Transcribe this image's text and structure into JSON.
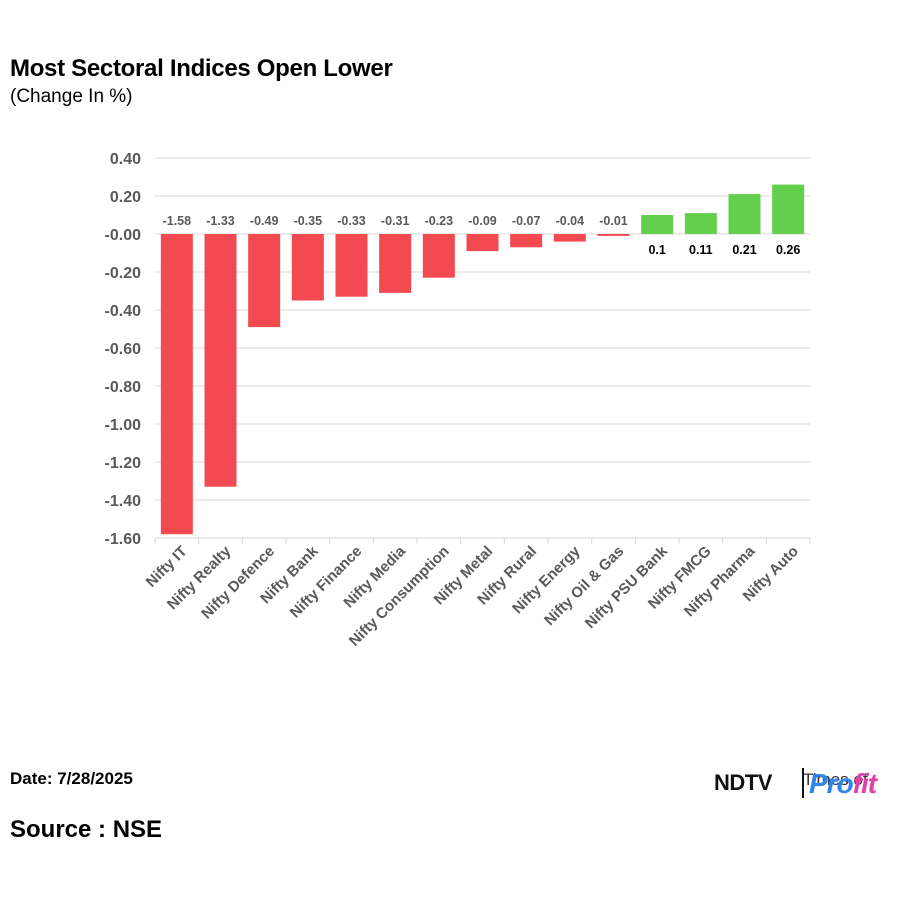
{
  "header": {
    "title": "Most Sectoral Indices Open Lower",
    "subtitle": "(Change In %)"
  },
  "footer": {
    "date": "Date: 7/28/2025",
    "source": "Source : NSE"
  },
  "logo": {
    "brand": "NDTV",
    "product_part1": "Pro",
    "product_part2": "fit",
    "partner_overlay": "Times of"
  },
  "colors": {
    "negative": "#f24a50",
    "positive": "#63cf4d",
    "grid": "#d9d9d9",
    "axis_text": "#595959",
    "neg_label": "#595959",
    "pos_label": "#000000"
  },
  "chart_data": {
    "type": "bar",
    "categories": [
      "Nifty IT",
      "Nifty Realty",
      "Nifty Defence",
      "Nifty Bank",
      "Nifty Finance",
      "Nifty Media",
      "Nifty Consumption",
      "Nifty Metal",
      "Nifty Rural",
      "Nifty Energy",
      "Nifty Oil & Gas",
      "Nifty PSU Bank",
      "Nifty FMCG",
      "Nifty Pharma",
      "Nifty Auto"
    ],
    "values": [
      -1.58,
      -1.33,
      -0.49,
      -0.35,
      -0.33,
      -0.31,
      -0.23,
      -0.09,
      -0.07,
      -0.04,
      -0.01,
      0.1,
      0.11,
      0.21,
      0.26
    ],
    "data_labels": [
      "-1.58",
      "-1.33",
      "-0.49",
      "-0.35",
      "-0.33",
      "-0.31",
      "-0.23",
      "-0.09",
      "-0.07",
      "-0.04",
      "-0.01",
      "0.1",
      "0.11",
      "0.21",
      "0.26"
    ],
    "y_ticks": [
      0.4,
      0.2,
      0,
      -0.2,
      -0.4,
      -0.6,
      -0.8,
      -1.0,
      -1.2,
      -1.4,
      -1.6
    ],
    "y_tick_labels": [
      "0.40",
      "0.20",
      "-0.00",
      "-0.20",
      "-0.40",
      "-0.60",
      "-0.80",
      "-1.00",
      "-1.20",
      "-1.40",
      "-1.60"
    ],
    "ylim": [
      -1.6,
      0.4
    ],
    "grid": true,
    "legend": "none"
  }
}
